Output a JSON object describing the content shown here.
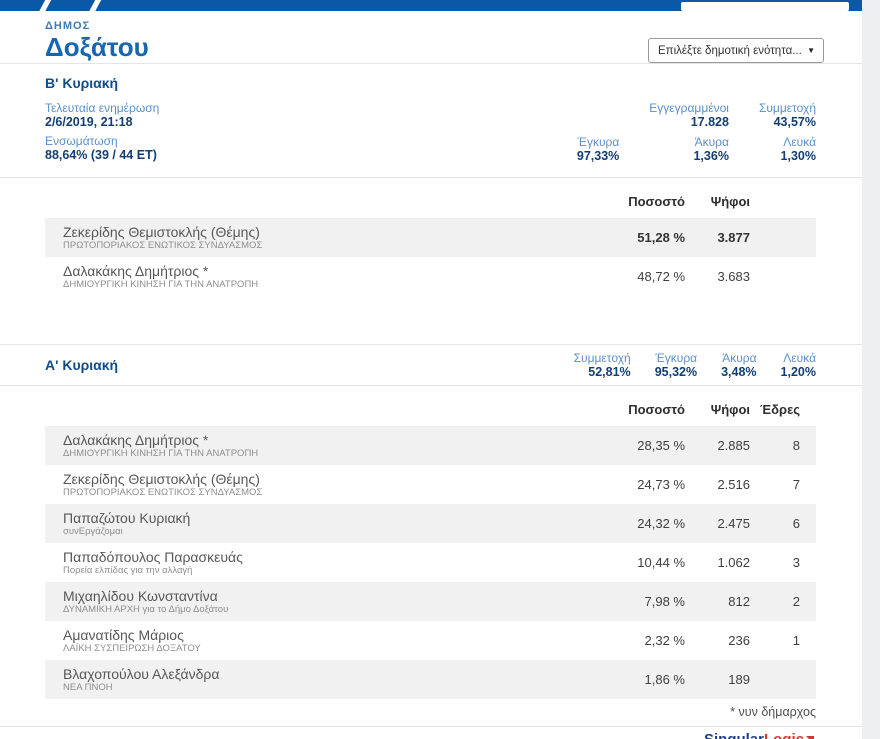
{
  "header": {
    "municipality_label": "ΔΗΜΟΣ",
    "municipality_name": "Δοξάτου",
    "unit_select_placeholder": "Επιλέξτε δημοτική ενότητα..."
  },
  "colors": {
    "accent_blue": "#0a59a6",
    "label_blue": "#5d8fc9",
    "value_navy": "#123f73",
    "brand_red": "#d8372e"
  },
  "round_b": {
    "title": "Β' Κυριακή",
    "left_stats": [
      {
        "label": "Τελευταία ενημέρωση",
        "value": "2/6/2019, 21:18"
      },
      {
        "label": "Ενσωμάτωση",
        "value": "88,64% (39 / 44 ΕΤ)"
      }
    ],
    "right_stats": [
      {
        "label": "Εγγεγραμμένοι",
        "value": "17.828"
      },
      {
        "label": "Συμμετοχή",
        "value": "43,57%"
      },
      {
        "label": "Έγκυρα",
        "value": "97,33%"
      },
      {
        "label": "Άκυρα",
        "value": "1,36%"
      },
      {
        "label": "Λευκά",
        "value": "1,30%"
      }
    ],
    "columns": {
      "percent": "Ποσοστό",
      "votes": "Ψήφοι",
      "seats": ""
    },
    "rows": [
      {
        "name": "Ζεκερίδης Θεμιστοκλής (Θέμης)",
        "party": "ΠΡΩΤΟΠΟΡΙΑΚΟΣ ΕΝΩΤΙΚΟΣ ΣΥΝΔΥΑΣΜΟΣ",
        "percent": "51,28 %",
        "votes": "3.877",
        "seats": "",
        "highlight": true
      },
      {
        "name": "Δαλακάκης Δημήτριος *",
        "party": "ΔΗΜΙΟΥΡΓΙΚΗ ΚΙΝΗΣΗ ΓΙΑ ΤΗΝ ΑΝΑΤΡΟΠΗ",
        "percent": "48,72 %",
        "votes": "3.683",
        "seats": "",
        "highlight": false
      }
    ]
  },
  "round_a": {
    "title": "Α' Κυριακή",
    "stats": [
      {
        "label": "Συμμετοχή",
        "value": "52,81%"
      },
      {
        "label": "Έγκυρα",
        "value": "95,32%"
      },
      {
        "label": "Άκυρα",
        "value": "3,48%"
      },
      {
        "label": "Λευκά",
        "value": "1,20%"
      }
    ],
    "columns": {
      "percent": "Ποσοστό",
      "votes": "Ψήφοι",
      "seats": "Έδρες"
    },
    "rows": [
      {
        "name": "Δαλακάκης Δημήτριος *",
        "party": "ΔΗΜΙΟΥΡΓΙΚΗ ΚΙΝΗΣΗ ΓΙΑ ΤΗΝ ΑΝΑΤΡΟΠΗ",
        "percent": "28,35 %",
        "votes": "2.885",
        "seats": "8",
        "highlight": false
      },
      {
        "name": "Ζεκερίδης Θεμιστοκλής (Θέμης)",
        "party": "ΠΡΩΤΟΠΟΡΙΑΚΟΣ ΕΝΩΤΙΚΟΣ ΣΥΝΔΥΑΣΜΟΣ",
        "percent": "24,73 %",
        "votes": "2.516",
        "seats": "7",
        "highlight": false
      },
      {
        "name": "Παπαζώτου Κυριακή",
        "party": "συνΕργάζομαι",
        "percent": "24,32 %",
        "votes": "2.475",
        "seats": "6",
        "highlight": false
      },
      {
        "name": "Παπαδόπουλος Παρασκευάς",
        "party": "Πορεία ελπίδας για την αλλαγή",
        "percent": "10,44 %",
        "votes": "1.062",
        "seats": "3",
        "highlight": false
      },
      {
        "name": "Μιχαηλίδου Κωνσταντίνα",
        "party": "ΔΥΝΑΜΙΚΗ ΑΡΧΗ για το Δήμο Δοξάτου",
        "percent": "7,98 %",
        "votes": "812",
        "seats": "2",
        "highlight": false
      },
      {
        "name": "Αμανατίδης Μάριος",
        "party": "ΛΑΪΚΗ ΣΥΣΠΕΙΡΩΣΗ ΔΟΞΑΤΟΥ",
        "percent": "2,32 %",
        "votes": "236",
        "seats": "1",
        "highlight": false
      },
      {
        "name": "Βλαχοπούλου Αλεξάνδρα",
        "party": "ΝΕΑ ΠΝΟΗ",
        "percent": "1,86 %",
        "votes": "189",
        "seats": "",
        "highlight": false
      }
    ]
  },
  "footnote": "* νυν δήμαρχος",
  "brand": {
    "part1": "Singular",
    "part2": "Logic"
  }
}
